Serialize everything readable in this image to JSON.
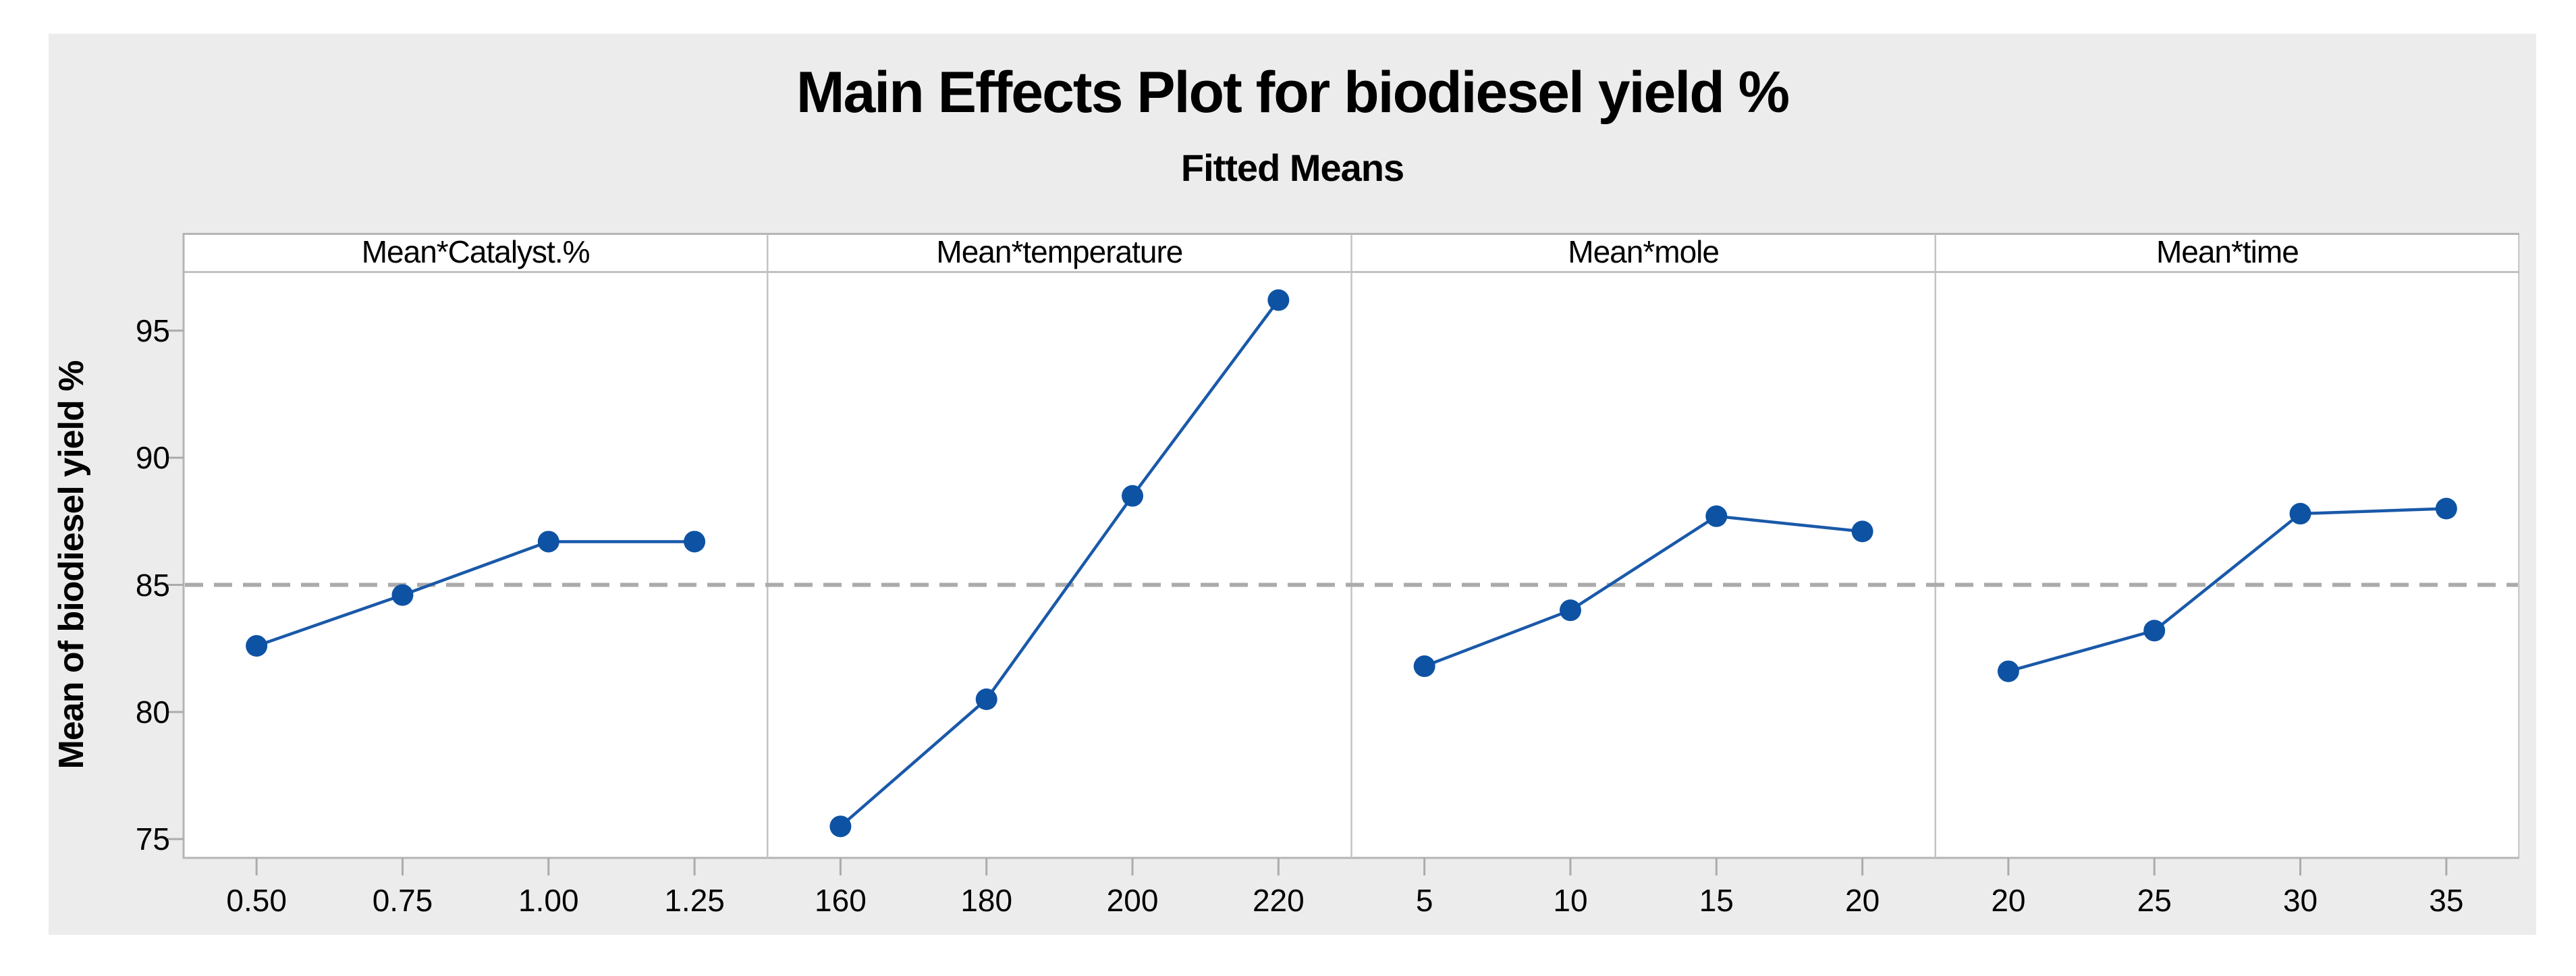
{
  "chart_data": {
    "type": "line",
    "title": "Main Effects Plot for biodiesel yield %",
    "subtitle": "Fitted Means",
    "ylabel": "Mean of biodiesel yield %",
    "yticks": [
      95,
      90,
      85,
      80,
      75
    ],
    "ylim": [
      74.25,
      97.35
    ],
    "mean_line_value": 85.0,
    "mean_line_style": "dashed",
    "legend": "none",
    "panels": [
      {
        "header": "Mean*Catalyst.%",
        "x_labels": [
          "0.50",
          "0.75",
          "1.00",
          "1.25"
        ],
        "values": [
          82.6,
          84.6,
          86.7,
          86.7
        ]
      },
      {
        "header": "Mean*temperature",
        "x_labels": [
          "160",
          "180",
          "200",
          "220"
        ],
        "values": [
          75.5,
          80.5,
          88.5,
          96.2
        ]
      },
      {
        "header": "Mean*mole",
        "x_labels": [
          "5",
          "10",
          "15",
          "20"
        ],
        "values": [
          81.8,
          84.0,
          87.7,
          87.1
        ]
      },
      {
        "header": "Mean*time",
        "x_labels": [
          "20",
          "25",
          "30",
          "35"
        ],
        "values": [
          81.6,
          83.2,
          87.8,
          88.0
        ]
      }
    ],
    "colors": {
      "figure_background": "#ececec",
      "plot_background": "#ffffff",
      "panel_border": "#b5b5b5",
      "panel_divider": "#c3c3c3",
      "tick_mark": "#ababab",
      "mean_line": "#ababab",
      "series_line": "#1a59a9",
      "marker_fill": "#0e52a3",
      "text": "#000000"
    }
  }
}
